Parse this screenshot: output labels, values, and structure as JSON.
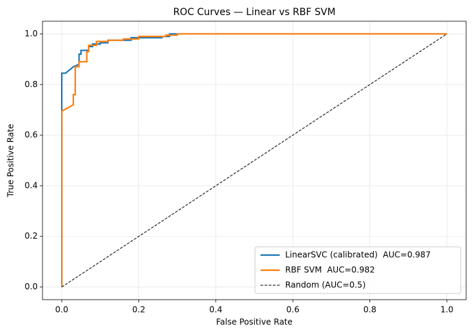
{
  "chart_data": {
    "type": "line",
    "title": "ROC Curves — Linear vs RBF SVM",
    "xlabel": "False Positive Rate",
    "ylabel": "True Positive Rate",
    "xlim": [
      -0.05,
      1.05
    ],
    "ylim": [
      -0.05,
      1.05
    ],
    "xticks": [
      {
        "value": 0,
        "label": "0.0"
      },
      0.2,
      0.4,
      0.6,
      0.8,
      {
        "value": 1,
        "label": "1.0"
      }
    ],
    "yticks": [
      {
        "value": 0,
        "label": "0.0"
      },
      0.2,
      0.4,
      0.6,
      0.8,
      {
        "value": 1,
        "label": "1.0"
      }
    ],
    "grid": true,
    "legend": "lower right",
    "series": [
      {
        "name": "LinearSVC (calibrated)  AUC=0.987",
        "color": "#1f77b4",
        "linestyle": "solid",
        "x": [
          0,
          0,
          0.01,
          0.03,
          0.045,
          0.045,
          0.05,
          0.05,
          0.07,
          0.07,
          0.08,
          0.08,
          0.1,
          0.1,
          0.12,
          0.12,
          0.18,
          0.18,
          0.26,
          0.26,
          0.28,
          0.28,
          1
        ],
        "values": [
          0,
          0.845,
          0.845,
          0.87,
          0.88,
          0.92,
          0.92,
          0.935,
          0.935,
          0.95,
          0.95,
          0.96,
          0.96,
          0.965,
          0.965,
          0.975,
          0.975,
          0.985,
          0.985,
          0.99,
          0.99,
          1,
          1
        ]
      },
      {
        "name": "RBF SVM  AUC=0.982",
        "color": "#ff7f0e",
        "linestyle": "solid",
        "x": [
          0,
          0,
          0.03,
          0.03,
          0.035,
          0.035,
          0.045,
          0.045,
          0.065,
          0.065,
          0.07,
          0.07,
          0.09,
          0.09,
          0.12,
          0.12,
          0.16,
          0.16,
          0.2,
          0.2,
          0.27,
          0.27,
          0.3,
          0.3,
          1
        ],
        "values": [
          0,
          0.695,
          0.72,
          0.76,
          0.76,
          0.87,
          0.87,
          0.89,
          0.89,
          0.93,
          0.93,
          0.955,
          0.955,
          0.97,
          0.97,
          0.975,
          0.975,
          0.98,
          0.98,
          0.99,
          0.99,
          0.995,
          0.995,
          1,
          1
        ]
      },
      {
        "name": "Random (AUC=0.5)",
        "color": "#000000",
        "linestyle": "dashed",
        "x": [
          0,
          1
        ],
        "values": [
          0,
          1
        ]
      }
    ]
  }
}
